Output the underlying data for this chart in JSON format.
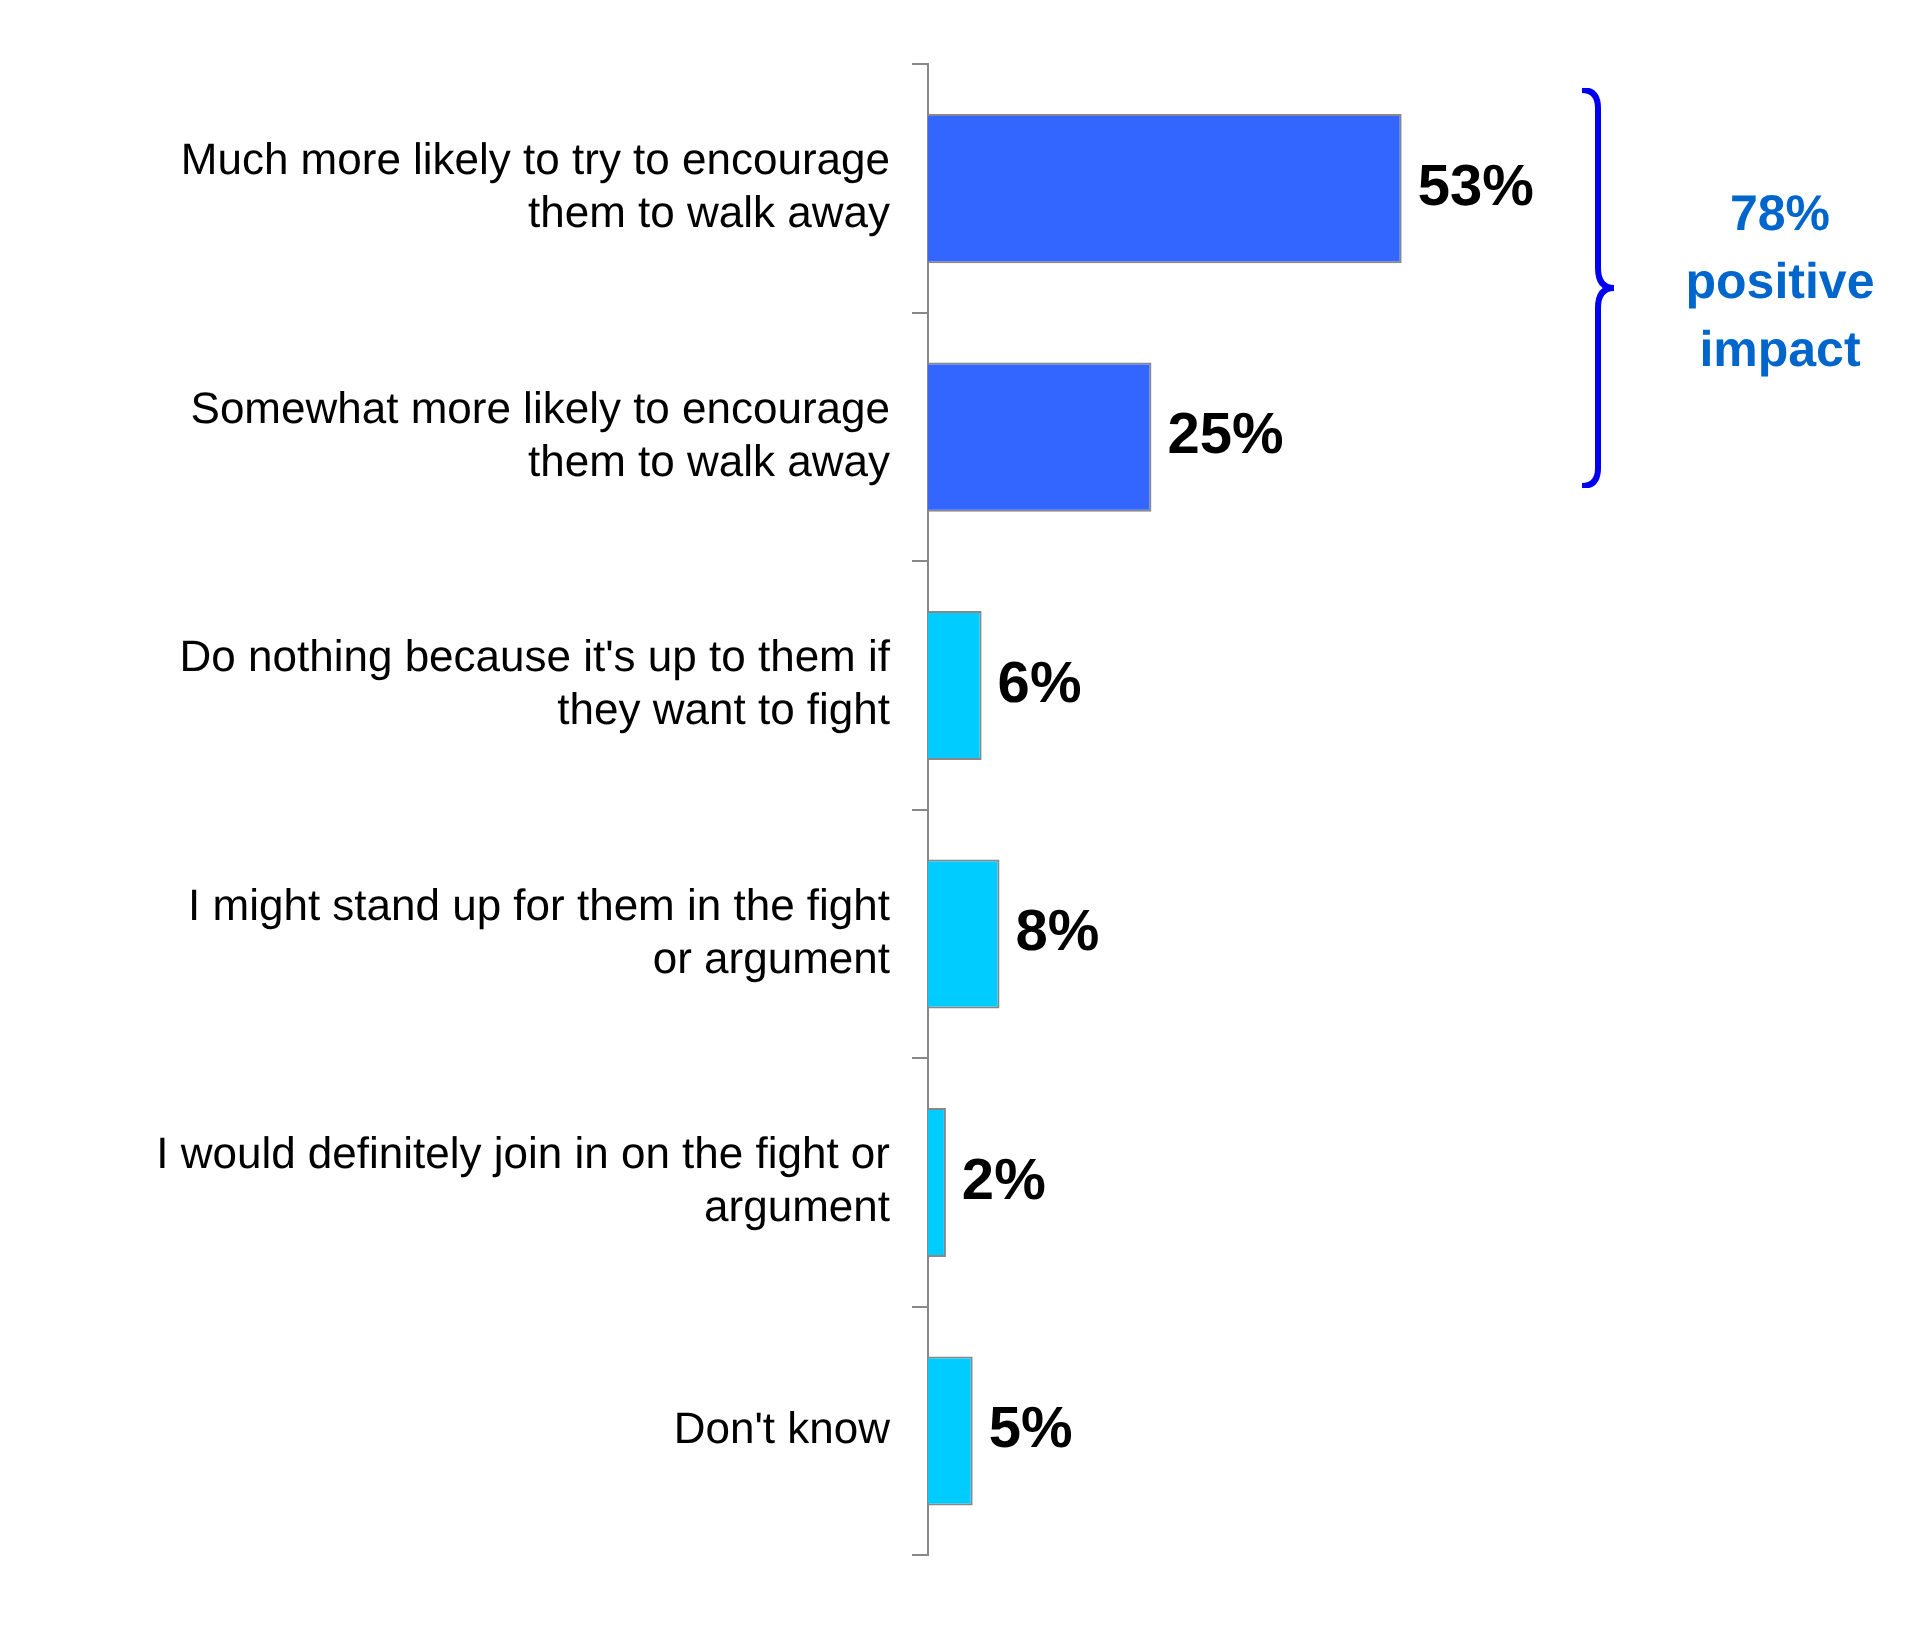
{
  "chart_data": {
    "type": "bar",
    "orientation": "horizontal",
    "tick_labels": "y",
    "categories": [
      "Much more likely to try to encourage them to walk away",
      "Somewhat more likely to encourage them to walk away",
      "Do nothing because it's up to them if they want to fight",
      "I might stand up for them in the fight or argument",
      "I would definitely join in on the fight or argument",
      "Don't know"
    ],
    "values": [
      53,
      25,
      6,
      8,
      2,
      5
    ],
    "value_labels": [
      "53%",
      "25%",
      "6%",
      "8%",
      "2%",
      "5%"
    ],
    "colors": [
      "#3366ff",
      "#3366ff",
      "#00ccff",
      "#00ccff",
      "#00ccff",
      "#00ccff"
    ],
    "annotations": [
      "78% positive impact"
    ],
    "legend": false
  }
}
